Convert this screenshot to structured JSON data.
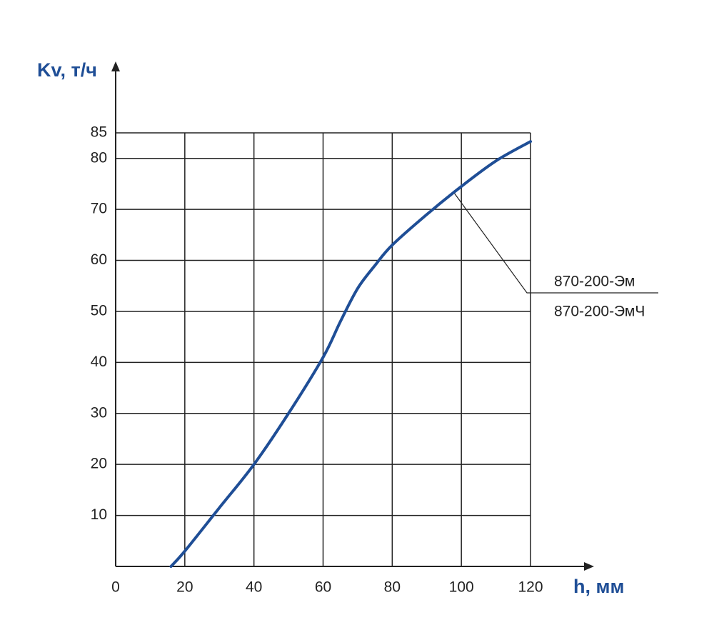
{
  "chart_data": {
    "type": "line",
    "x_label": "h, мм",
    "y_label": "Kv, т/ч",
    "x": [
      16,
      20,
      30,
      40,
      50,
      60,
      65,
      70,
      75,
      80,
      90,
      100,
      110,
      120
    ],
    "series": [
      {
        "name": "870-200-Эм",
        "color": "#1f4e96",
        "values": [
          0,
          3,
          11.5,
          20,
          30,
          41,
          48,
          54.5,
          59,
          63,
          69,
          74.5,
          79.5,
          83.3
        ]
      }
    ],
    "annotations": [
      "870-200-Эм",
      "870-200-ЭмЧ"
    ],
    "xlim": [
      0,
      120
    ],
    "xticks": [
      0,
      20,
      40,
      60,
      80,
      100,
      120
    ],
    "ylim": [
      0,
      85
    ],
    "yticks": [
      10,
      20,
      30,
      40,
      50,
      60,
      70,
      80,
      85
    ],
    "grid": true
  }
}
